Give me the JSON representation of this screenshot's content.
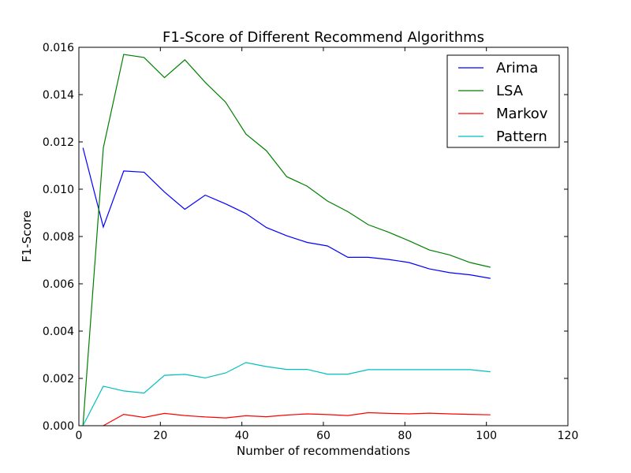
{
  "chart_data": {
    "type": "line",
    "title": "F1-Score of Different Recommend Algorithms",
    "xlabel": "Number of recommendations",
    "ylabel": "F1-Score",
    "xlim": [
      0,
      120
    ],
    "ylim": [
      0,
      0.016
    ],
    "xticks": [
      "0",
      "20",
      "40",
      "60",
      "80",
      "100",
      "120"
    ],
    "yticks": [
      "0.000",
      "0.002",
      "0.004",
      "0.006",
      "0.008",
      "0.010",
      "0.012",
      "0.014",
      "0.016"
    ],
    "grid": false,
    "legend_position": "top-right",
    "x": [
      1,
      6,
      11,
      16,
      21,
      26,
      31,
      36,
      41,
      46,
      51,
      56,
      61,
      66,
      71,
      76,
      81,
      86,
      91,
      96,
      101
    ],
    "series": [
      {
        "name": "Arima",
        "color": "#0000ff",
        "values": [
          0.01175,
          0.0084,
          0.01077,
          0.01072,
          0.00988,
          0.00915,
          0.00975,
          0.00938,
          0.00897,
          0.00838,
          0.00803,
          0.00775,
          0.0076,
          0.00712,
          0.00712,
          0.00703,
          0.0069,
          0.00663,
          0.00647,
          0.00638,
          0.00623
        ]
      },
      {
        "name": "LSA",
        "color": "#008000",
        "values": [
          0.0,
          0.01175,
          0.0157,
          0.01557,
          0.01472,
          0.01547,
          0.01452,
          0.01368,
          0.01233,
          0.01163,
          0.01053,
          0.01013,
          0.0095,
          0.00905,
          0.0085,
          0.00818,
          0.00782,
          0.00743,
          0.00722,
          0.0069,
          0.0067
        ]
      },
      {
        "name": "Markov",
        "color": "#ff0000",
        "values": [
          null,
          0.0,
          0.00048,
          0.00035,
          0.00052,
          0.00043,
          0.00037,
          0.00033,
          0.00042,
          0.00038,
          0.00045,
          0.0005,
          0.00047,
          0.00043,
          0.00055,
          0.00052,
          0.0005,
          0.00053,
          0.0005,
          0.00048,
          0.00046
        ]
      },
      {
        "name": "Pattern",
        "color": "#00bfbf",
        "values": [
          0.0,
          0.00167,
          0.00147,
          0.00138,
          0.00213,
          0.00217,
          0.00202,
          0.00223,
          0.00267,
          0.0025,
          0.00238,
          0.00238,
          0.00218,
          0.00218,
          0.00237,
          0.00237,
          0.00237,
          0.00237,
          0.00237,
          0.00237,
          0.00228
        ]
      }
    ]
  }
}
